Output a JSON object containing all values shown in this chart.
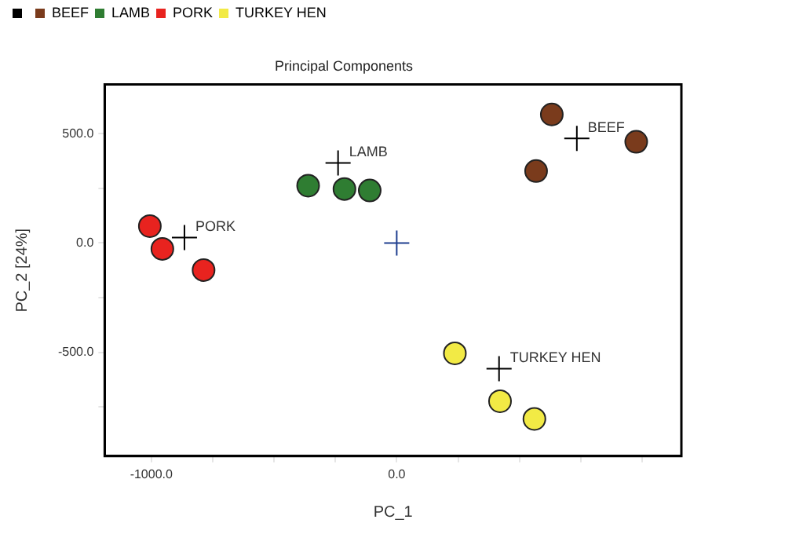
{
  "chart_data": {
    "type": "scatter",
    "title": "Principal Components",
    "xlabel": "PC_1",
    "ylabel": "PC_2 [24%]",
    "xlim": [
      -1190,
      1160
    ],
    "ylim": [
      -975,
      725
    ],
    "xticks": [
      {
        "value": -1000,
        "label": "-1000.0"
      },
      {
        "value": -750,
        "label": null
      },
      {
        "value": -500,
        "label": null
      },
      {
        "value": -250,
        "label": null
      },
      {
        "value": 0,
        "label": "0.0"
      },
      {
        "value": 250,
        "label": null
      },
      {
        "value": 500,
        "label": null
      },
      {
        "value": 750,
        "label": null
      },
      {
        "value": 1000,
        "label": null
      }
    ],
    "yticks": [
      {
        "value": -750,
        "label": null
      },
      {
        "value": -500,
        "label": "-500.0"
      },
      {
        "value": -250,
        "label": null
      },
      {
        "value": 0,
        "label": "0.0"
      },
      {
        "value": 250,
        "label": null
      },
      {
        "value": 500,
        "label": "500.0"
      }
    ],
    "grid": false,
    "legend": "top left",
    "series": [
      {
        "type": "scatter",
        "marker": "cross",
        "color": "#000000",
        "colors": [
          "#000000",
          "#000000",
          "#000000",
          "#000000",
          "#1f3f8f"
        ],
        "x": [
          734,
          -239,
          -865,
          417,
          0
        ],
        "values": [
          478,
          366,
          25,
          -575,
          0
        ]
      },
      {
        "name": "BEEF",
        "marker": "circle",
        "color": "#7a3b1c",
        "x": [
          632,
          976,
          568
        ],
        "values": [
          588,
          463,
          329
        ]
      },
      {
        "name": "LAMB",
        "marker": "circle",
        "color": "#2f7d32",
        "x": [
          -361,
          -213,
          -110
        ],
        "values": [
          262,
          247,
          240
        ]
      },
      {
        "name": "PORK",
        "marker": "circle",
        "color": "#e8231f",
        "x": [
          -1006,
          -955,
          -787
        ],
        "values": [
          77,
          -27,
          -124
        ]
      },
      {
        "name": "TURKEY HEN",
        "marker": "circle",
        "color": "#f2ea45",
        "x": [
          237,
          421,
          561
        ],
        "values": [
          -505,
          -724,
          -805
        ]
      }
    ],
    "annotations": [
      {
        "text": "BEEF",
        "x": 734,
        "y": 478
      },
      {
        "text": "LAMB",
        "x": -239,
        "y": 366
      },
      {
        "text": "PORK",
        "x": -865,
        "y": 25
      },
      {
        "text": "TURKEY HEN",
        "x": 417,
        "y": -575
      }
    ]
  }
}
